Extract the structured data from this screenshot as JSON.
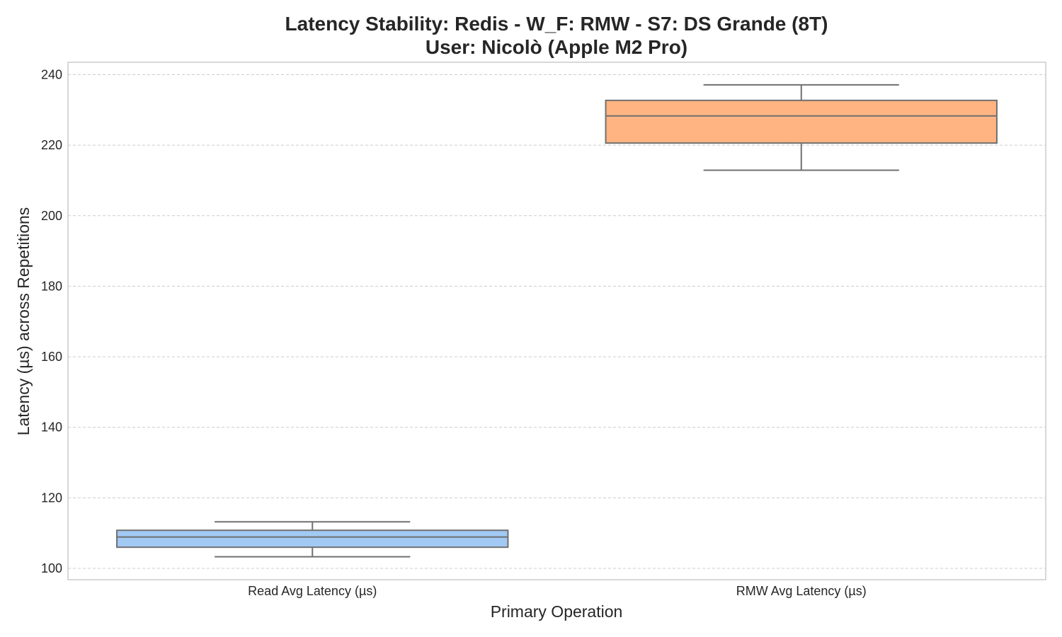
{
  "chart_data": {
    "type": "box",
    "title_line1": "Latency Stability: Redis - W_F: RMW - S7: DS Grande (8T)",
    "title_line2": "User: Nicolò (Apple M2 Pro)",
    "xlabel": "Primary Operation",
    "ylabel": "Latency (µs) across Repetitions",
    "ylim": [
      96.8,
      243.5
    ],
    "yticks": [
      100,
      120,
      140,
      160,
      180,
      200,
      220,
      240
    ],
    "grid": true,
    "categories": [
      "Read Avg Latency (µs)",
      "RMW Avg Latency (µs)"
    ],
    "boxes": [
      {
        "category": "Read Avg Latency (µs)",
        "whisker_low": 103.3,
        "q1": 106.0,
        "median": 108.9,
        "q3": 110.8,
        "whisker_high": 113.2,
        "color": "#a1c9f4"
      },
      {
        "category": "RMW Avg Latency (µs)",
        "whisker_low": 212.9,
        "q1": 220.6,
        "median": 228.3,
        "q3": 232.7,
        "whisker_high": 237.1,
        "color": "#ffb482"
      }
    ]
  }
}
